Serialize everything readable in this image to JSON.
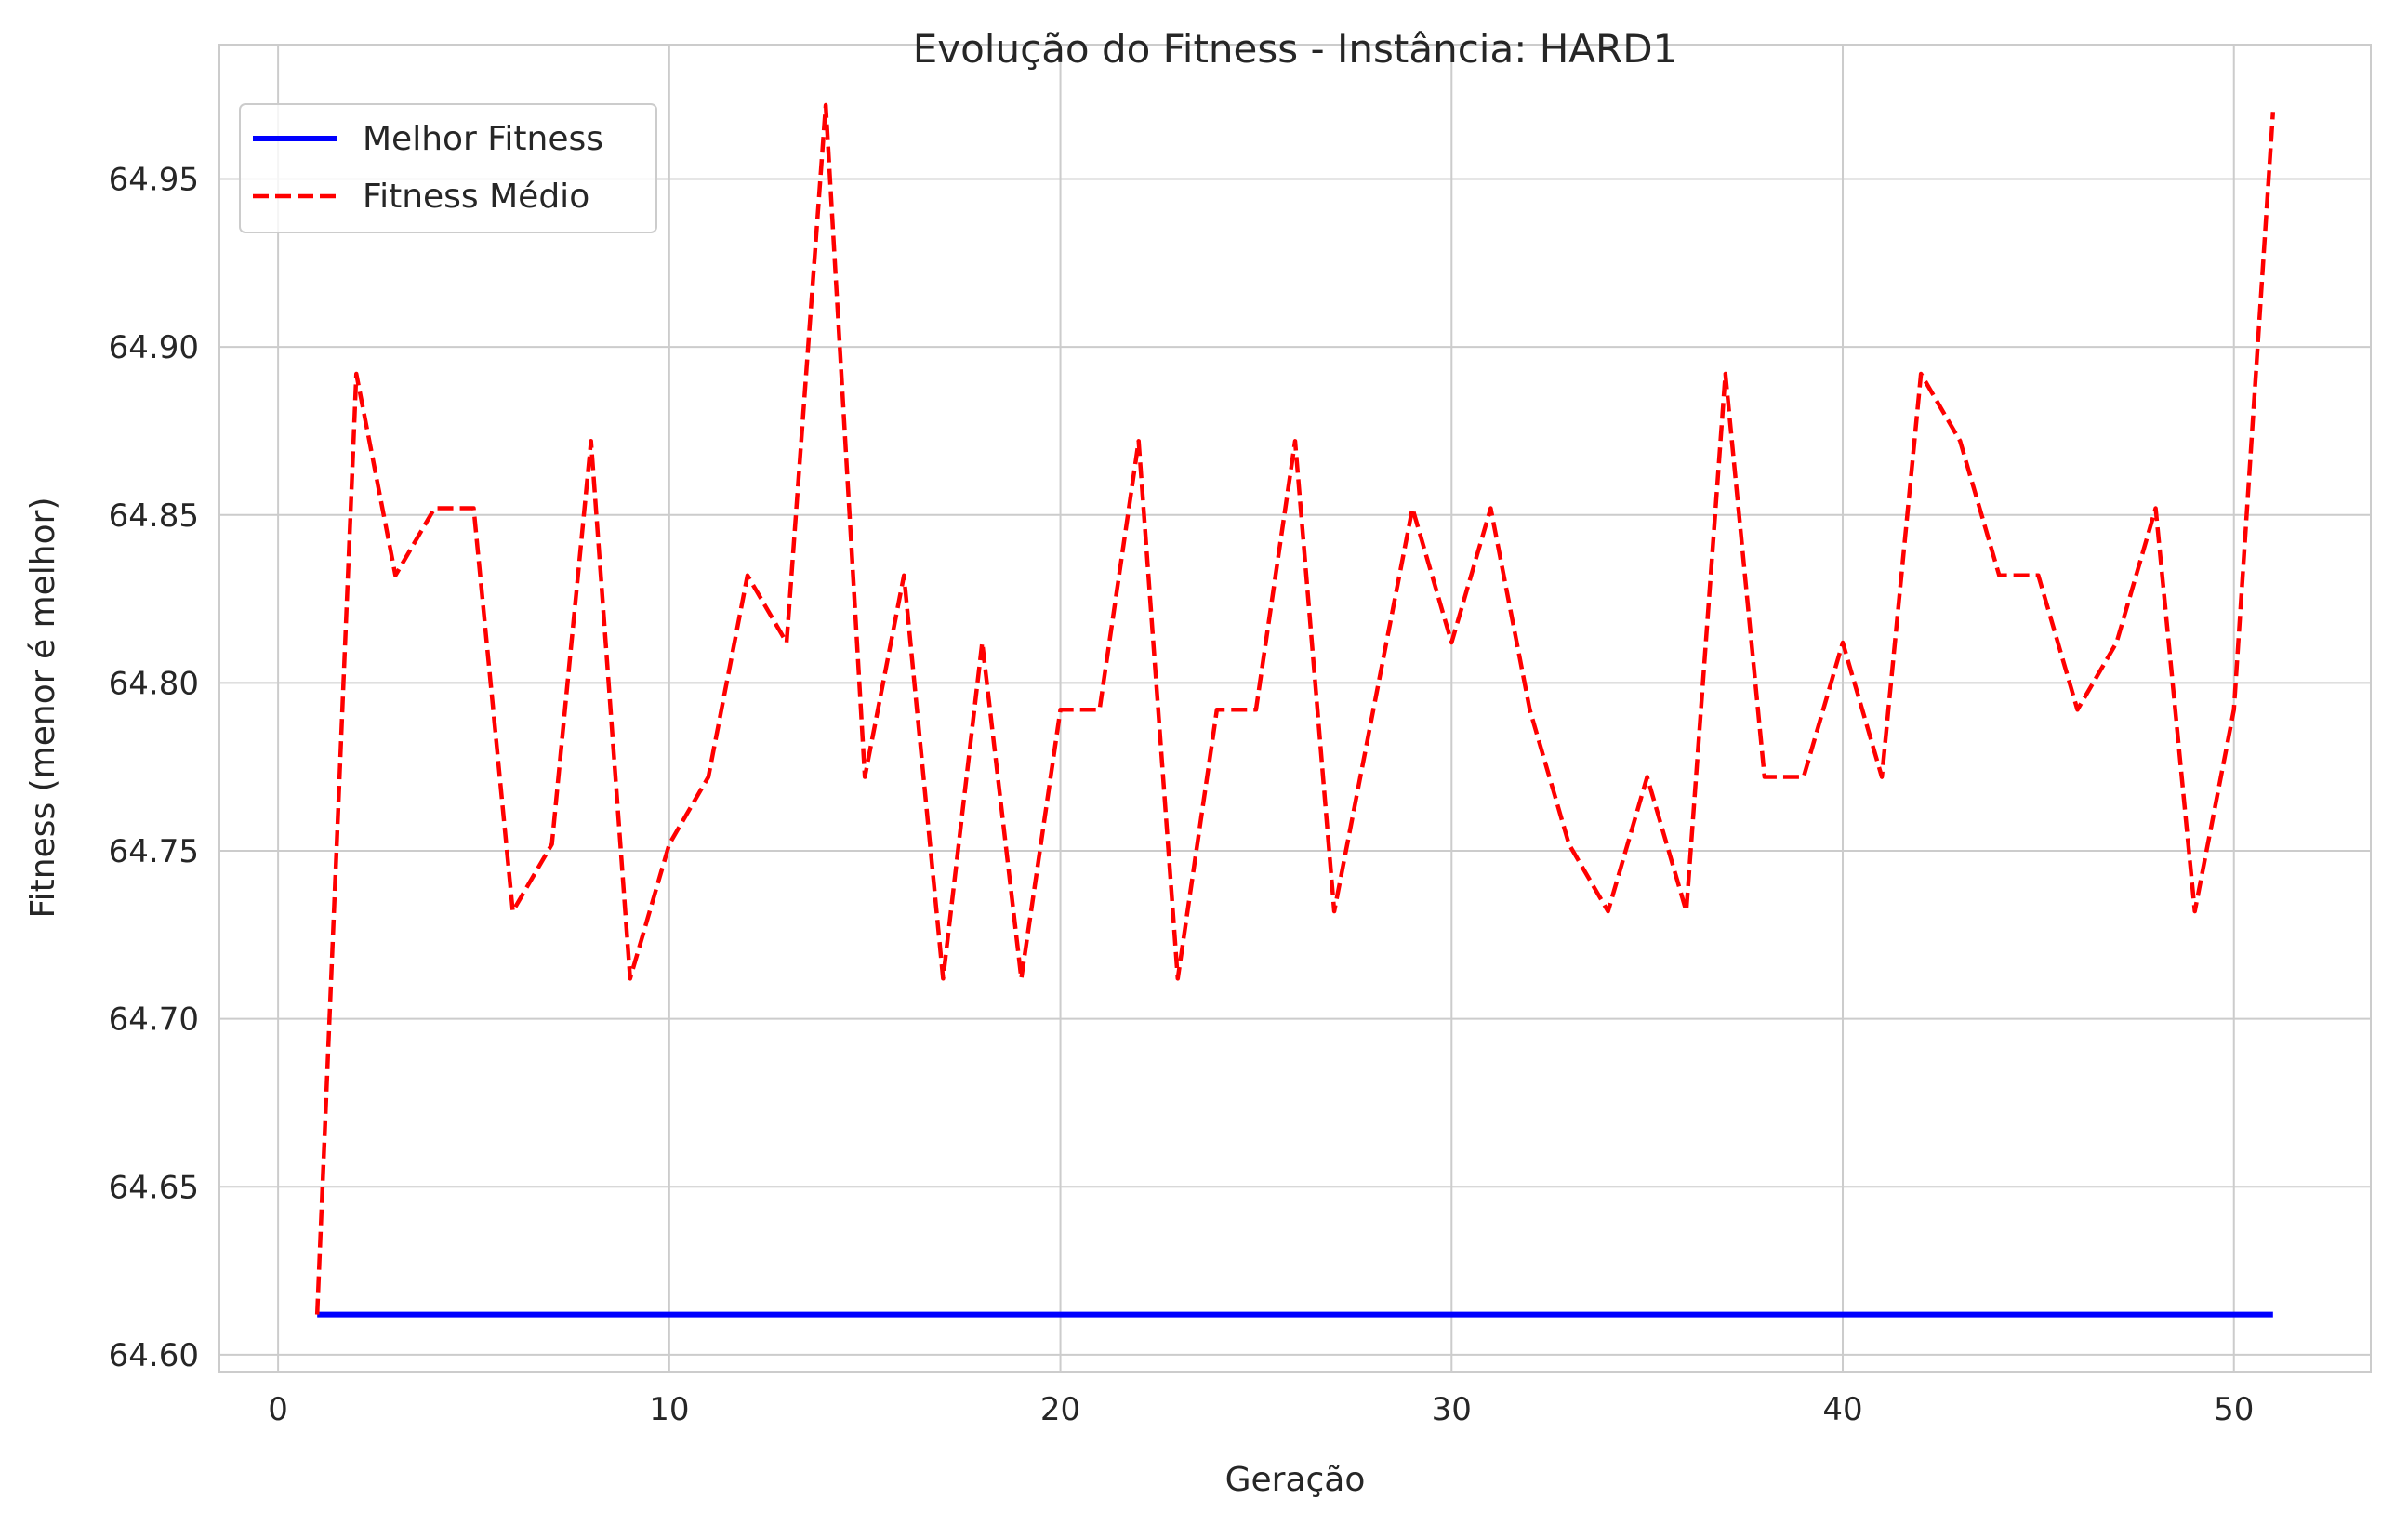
{
  "chart_data": {
    "type": "line",
    "title": "Evolução do Fitness - Instância: HARD1",
    "xlabel": "Geração",
    "ylabel": "Fitness (menor é melhor)",
    "xlim": [
      -1.5,
      53.5
    ],
    "ylim": [
      64.595,
      64.99
    ],
    "xticks": [
      0,
      10,
      20,
      30,
      40,
      50
    ],
    "xtick_labels": [
      "0",
      "10",
      "20",
      "30",
      "40",
      "50"
    ],
    "yticks": [
      64.6,
      64.65,
      64.7,
      64.75,
      64.8,
      64.85,
      64.9,
      64.95
    ],
    "ytick_labels": [
      "64.60",
      "64.65",
      "64.70",
      "64.75",
      "64.80",
      "64.85",
      "64.90",
      "64.95"
    ],
    "grid": true,
    "legend_position": "top-left",
    "x": [
      1,
      2,
      3,
      4,
      5,
      6,
      7,
      8,
      9,
      10,
      11,
      12,
      13,
      14,
      15,
      16,
      17,
      18,
      19,
      20,
      21,
      22,
      23,
      24,
      25,
      26,
      27,
      28,
      29,
      30,
      31,
      32,
      33,
      34,
      35,
      36,
      37,
      38,
      39,
      40,
      41,
      42,
      43,
      44,
      45,
      46,
      47,
      48,
      49,
      50,
      51
    ],
    "series": [
      {
        "name": "Melhor Fitness",
        "color": "#0000ff",
        "style": "solid",
        "values": [
          64.612,
          64.612,
          64.612,
          64.612,
          64.612,
          64.612,
          64.612,
          64.612,
          64.612,
          64.612,
          64.612,
          64.612,
          64.612,
          64.612,
          64.612,
          64.612,
          64.612,
          64.612,
          64.612,
          64.612,
          64.612,
          64.612,
          64.612,
          64.612,
          64.612,
          64.612,
          64.612,
          64.612,
          64.612,
          64.612,
          64.612,
          64.612,
          64.612,
          64.612,
          64.612,
          64.612,
          64.612,
          64.612,
          64.612,
          64.612,
          64.612,
          64.612,
          64.612,
          64.612,
          64.612,
          64.612,
          64.612,
          64.612,
          64.612,
          64.612,
          64.612
        ]
      },
      {
        "name": "Fitness Médio",
        "color": "#ff0000",
        "style": "dashed",
        "values": [
          64.612,
          64.892,
          64.832,
          64.852,
          64.852,
          64.732,
          64.752,
          64.872,
          64.712,
          64.752,
          64.772,
          64.832,
          64.812,
          64.972,
          64.772,
          64.832,
          64.712,
          64.812,
          64.712,
          64.792,
          64.792,
          64.872,
          64.712,
          64.792,
          64.792,
          64.872,
          64.732,
          64.792,
          64.852,
          64.812,
          64.852,
          64.792,
          64.752,
          64.732,
          64.772,
          64.732,
          64.892,
          64.772,
          64.772,
          64.812,
          64.772,
          64.892,
          64.872,
          64.832,
          64.832,
          64.792,
          64.812,
          64.852,
          64.732,
          64.792,
          64.97
        ]
      }
    ]
  }
}
